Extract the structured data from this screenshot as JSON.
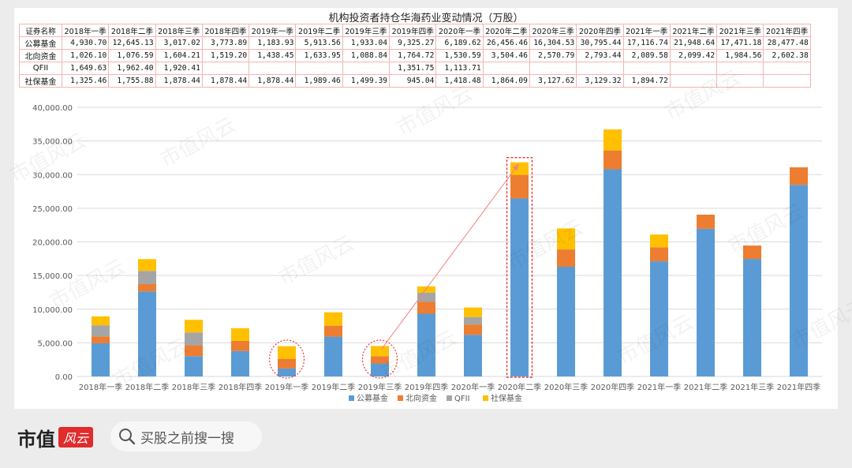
{
  "table": {
    "title": "机构投资者持仓华海药业变动情况（万股）",
    "header_label": "证券名称",
    "columns": [
      "2018年一季",
      "2018年二季",
      "2018年三季",
      "2018年四季",
      "2019年一季",
      "2019年二季",
      "2019年三季",
      "2019年四季",
      "2020年一季",
      "2020年二季",
      "2020年三季",
      "2020年四季",
      "2021年一季",
      "2021年二季",
      "2021年三季",
      "2021年四季"
    ],
    "rows": [
      {
        "label": "公募基金",
        "cells": [
          "4,930.70",
          "12,645.13",
          "3,017.02",
          "3,773.89",
          "1,183.93",
          "5,913.56",
          "1,933.04",
          "9,325.27",
          "6,189.62",
          "26,456.46",
          "16,304.53",
          "30,795.44",
          "17,116.74",
          "21,948.64",
          "17,471.18",
          "28,477.48"
        ]
      },
      {
        "label": "北向资金",
        "cells": [
          "1,026.10",
          "1,076.59",
          "1,604.21",
          "1,519.20",
          "1,438.45",
          "1,633.95",
          "1,088.84",
          "1,764.72",
          "1,530.59",
          "3,504.46",
          "2,570.79",
          "2,793.44",
          "2,089.58",
          "2,099.42",
          "1,984.56",
          "2,602.38"
        ]
      },
      {
        "label": "QFII",
        "cells": [
          "1,649.63",
          "1,962.40",
          "1,920.41",
          "",
          "",
          "",
          "",
          "1,351.75",
          "1,113.71",
          "",
          "",
          "",
          "",
          "",
          "",
          ""
        ]
      },
      {
        "label": "社保基金",
        "cells": [
          "1,325.46",
          "1,755.88",
          "1,878.44",
          "1,878.44",
          "1,878.44",
          "1,989.46",
          "1,499.39",
          "945.04",
          "1,418.48",
          "1,864.09",
          "3,127.62",
          "3,129.32",
          "1,894.72",
          "",
          "",
          ""
        ]
      }
    ]
  },
  "chart_data": {
    "type": "bar",
    "stacked": true,
    "categories": [
      "2018年一季",
      "2018年二季",
      "2018年三季",
      "2018年四季",
      "2019年一季",
      "2019年二季",
      "2019年三季",
      "2019年四季",
      "2020年一季",
      "2020年二季",
      "2020年三季",
      "2020年四季",
      "2021年一季",
      "2021年二季",
      "2021年三季",
      "2021年四季"
    ],
    "series": [
      {
        "name": "公募基金",
        "color": "#5b9bd5",
        "values": [
          4930.7,
          12645.13,
          3017.02,
          3773.89,
          1183.93,
          5913.56,
          1933.04,
          9325.27,
          6189.62,
          26456.46,
          16304.53,
          30795.44,
          17116.74,
          21948.64,
          17471.18,
          28477.48
        ]
      },
      {
        "name": "北向资金",
        "color": "#ed7d31",
        "values": [
          1026.1,
          1076.59,
          1604.21,
          1519.2,
          1438.45,
          1633.95,
          1088.84,
          1764.72,
          1530.59,
          3504.46,
          2570.79,
          2793.44,
          2089.58,
          2099.42,
          1984.56,
          2602.38
        ]
      },
      {
        "name": "QFII",
        "color": "#a5a5a5",
        "values": [
          1649.63,
          1962.4,
          1920.41,
          0,
          0,
          0,
          0,
          1351.75,
          1113.71,
          0,
          0,
          0,
          0,
          0,
          0,
          0
        ]
      },
      {
        "name": "社保基金",
        "color": "#ffc000",
        "values": [
          1325.46,
          1755.88,
          1878.44,
          1878.44,
          1878.44,
          1989.46,
          1499.39,
          945.04,
          1418.48,
          1864.09,
          3127.62,
          3129.32,
          1894.72,
          0,
          0,
          0
        ]
      }
    ],
    "yticks": [
      "0.00",
      "5,000.00",
      "10,000.00",
      "15,000.00",
      "20,000.00",
      "25,000.00",
      "30,000.00",
      "35,000.00",
      "40,000.00"
    ],
    "ylim": [
      0,
      40000
    ],
    "grid": true,
    "legend_position": "bottom",
    "annotations": {
      "circled_categories": [
        "2019年一季",
        "2019年三季"
      ],
      "boxed_category": "2020年二季",
      "arrow": {
        "from": "2019年三季",
        "to": "2020年二季",
        "color": "#f08080"
      }
    }
  },
  "watermark": {
    "text": "市值风云"
  },
  "footer": {
    "brand_text": "市值",
    "brand_tag": "风云",
    "search_icon": "search-icon",
    "search_text": "买股之前搜一搜"
  }
}
